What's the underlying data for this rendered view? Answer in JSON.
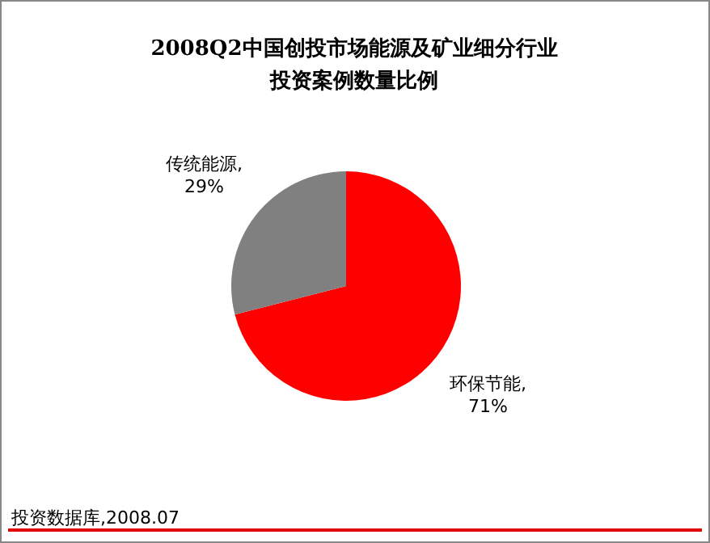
{
  "chart_data": {
    "type": "pie",
    "title": "2008Q2中国创投市场能源及矿业细分行业投资案例数量比例",
    "categories": [
      "环保节能",
      "传统能源"
    ],
    "values": [
      71,
      29
    ],
    "value_labels": [
      ", 71%",
      ", 29%"
    ],
    "colors": [
      "#ff0000",
      "#808080"
    ],
    "annotations": [
      "投资数据库,2008.07"
    ]
  }
}
